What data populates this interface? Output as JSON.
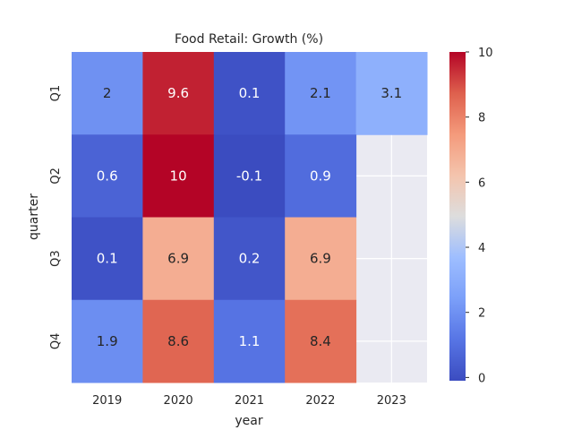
{
  "chart_data": {
    "type": "heatmap",
    "title": "Food Retail: Growth (%)",
    "xlabel": "year",
    "ylabel": "quarter",
    "x": [
      "2019",
      "2020",
      "2021",
      "2022",
      "2023"
    ],
    "y": [
      "Q1",
      "Q2",
      "Q3",
      "Q4"
    ],
    "values": [
      [
        2,
        9.6,
        0.1,
        2.1,
        3.1
      ],
      [
        0.6,
        10,
        -0.1,
        0.9,
        null
      ],
      [
        0.1,
        6.9,
        0.2,
        6.9,
        null
      ],
      [
        1.9,
        8.6,
        1.1,
        8.4,
        null
      ]
    ],
    "colormap": "coolwarm",
    "vmin": -0.1,
    "vmax": 10,
    "colorbar_ticks": [
      0,
      2,
      4,
      6,
      8,
      10
    ],
    "missing_color": "#eaeaf2",
    "grid_color": "#ffffff"
  }
}
